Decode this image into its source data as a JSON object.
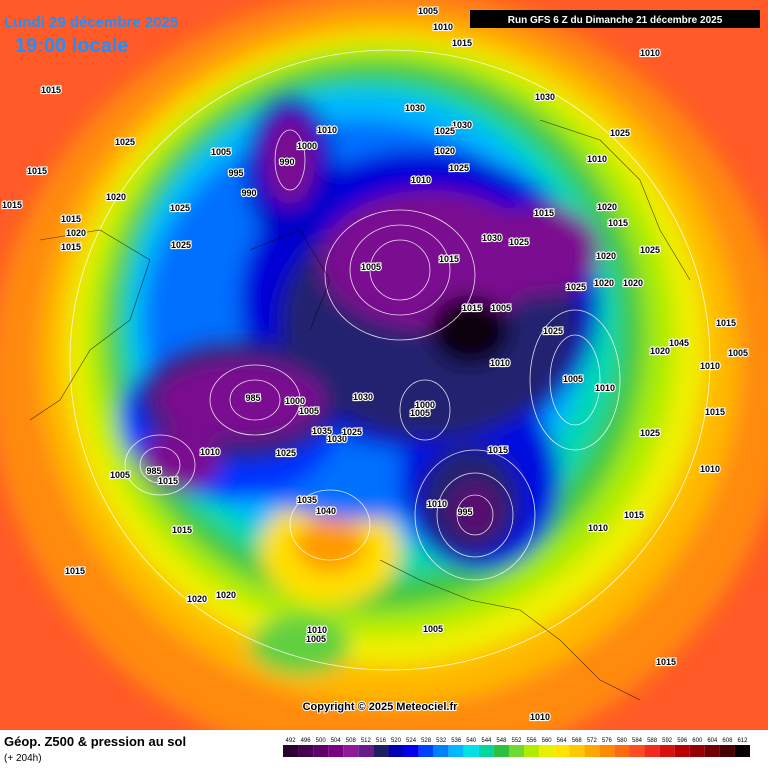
{
  "header": {
    "date": "Lundi 29 décembre 2025",
    "time": "19:00 locale",
    "run": "Run GFS 6 Z du Dimanche 21 décembre 2025"
  },
  "footer": {
    "title": "Géop. Z500 & pression au sol",
    "lead": "(+ 204h)",
    "copyright": "Copyright © 2025 Meteociel.fr"
  },
  "colorbar": {
    "values": [
      492,
      496,
      500,
      504,
      508,
      512,
      516,
      520,
      524,
      528,
      532,
      536,
      540,
      544,
      548,
      552,
      556,
      560,
      564,
      568,
      572,
      576,
      580,
      584,
      588,
      592,
      596,
      600,
      604,
      608,
      612
    ],
    "colors": [
      "#2a0030",
      "#45004f",
      "#60006a",
      "#7a0085",
      "#8e1a98",
      "#6a1a8a",
      "#1e1e60",
      "#0000b0",
      "#0000ee",
      "#0040ff",
      "#0080ff",
      "#00b8ff",
      "#00e0e8",
      "#00d8a0",
      "#30c040",
      "#70d830",
      "#b0ec00",
      "#e8f000",
      "#ffe400",
      "#ffc800",
      "#ffa800",
      "#ff8a00",
      "#ff6c10",
      "#ff4c20",
      "#f02c20",
      "#d81010",
      "#b80000",
      "#960000",
      "#700000",
      "#480000",
      "#080000"
    ]
  },
  "isobar_labels": [
    "1005",
    "1010",
    "1015",
    "1010",
    "1015",
    "1025",
    "1005",
    "995",
    "990",
    "1000",
    "1010",
    "1030",
    "1030",
    "1025",
    "1020",
    "1025",
    "1010",
    "1015",
    "1020",
    "1025",
    "1015",
    "1015",
    "1020",
    "1025",
    "1015",
    "1030",
    "1025",
    "1010",
    "990",
    "1005",
    "1015",
    "1030",
    "1025",
    "1020",
    "1015",
    "1015",
    "1025",
    "1020",
    "1025",
    "1020",
    "1015",
    "1005",
    "1010",
    "1020",
    "1045",
    "1010",
    "1005",
    "1015",
    "1025",
    "1010",
    "1005",
    "1020",
    "985",
    "985",
    "1000",
    "1005",
    "1035",
    "1030",
    "1025",
    "1025",
    "1000",
    "1010",
    "1030",
    "1035",
    "1040",
    "1005",
    "1015",
    "1015",
    "1020",
    "1020",
    "1010",
    "1005",
    "1005",
    "995",
    "1005",
    "1010",
    "1015",
    "1015",
    "1025",
    "1015",
    "1010",
    "1015",
    "1010",
    "1015",
    "1010"
  ]
}
